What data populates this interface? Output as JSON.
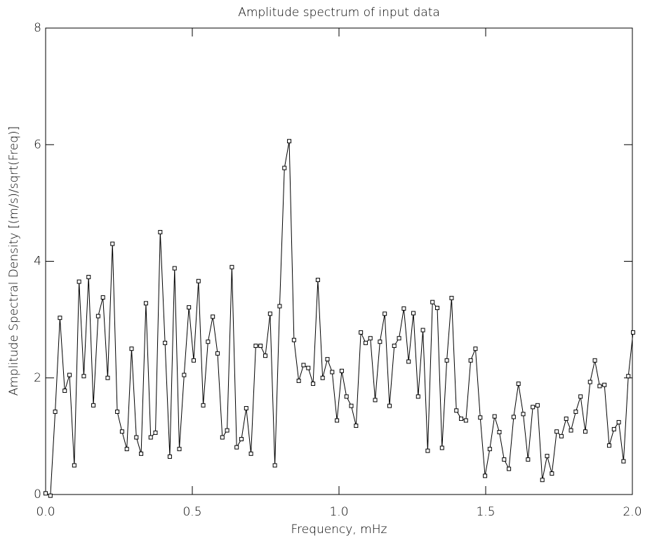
{
  "chart_data": {
    "type": "line",
    "title": "Amplitude spectrum of input data",
    "x_label": "Frequency, mHz",
    "y_label": "Amplitude Spectral Density [(m/s)/sqrt(Freq)]",
    "xlim": [
      0,
      2
    ],
    "ylim": [
      0,
      8
    ],
    "xticks": [
      {
        "value": 0,
        "label": "0.0"
      },
      0.5,
      {
        "value": 1,
        "label": "1.0"
      },
      1.5,
      {
        "value": 2,
        "label": "2.0"
      }
    ],
    "yticks": [
      0,
      2,
      4,
      6,
      8
    ],
    "grid": false,
    "x": [
      0,
      0.0163,
      0.0326,
      0.0488,
      0.0651,
      0.0814,
      0.0977,
      0.114,
      0.1302,
      0.1465,
      0.1628,
      0.1791,
      0.1954,
      0.2116,
      0.2279,
      0.2442,
      0.2605,
      0.2768,
      0.293,
      0.3093,
      0.3256,
      0.3419,
      0.3582,
      0.3744,
      0.3907,
      0.407,
      0.4233,
      0.4396,
      0.4558,
      0.4721,
      0.4884,
      0.5047,
      0.521,
      0.5372,
      0.5535,
      0.5698,
      0.5861,
      0.6024,
      0.6186,
      0.6349,
      0.6512,
      0.6675,
      0.6838,
      0.7,
      0.7163,
      0.7326,
      0.7489,
      0.7652,
      0.7814,
      0.7977,
      0.814,
      0.8303,
      0.8466,
      0.8628,
      0.8791,
      0.8954,
      0.9117,
      0.928,
      0.9442,
      0.9605,
      0.9768,
      0.9931,
      1.0094,
      1.0256,
      1.0419,
      1.0582,
      1.0745,
      1.0908,
      1.107,
      1.1233,
      1.1396,
      1.1559,
      1.1722,
      1.1884,
      1.2047,
      1.221,
      1.2373,
      1.2536,
      1.2698,
      1.2861,
      1.3024,
      1.3187,
      1.335,
      1.3512,
      1.3675,
      1.3838,
      1.4001,
      1.4164,
      1.4326,
      1.4489,
      1.4652,
      1.4815,
      1.4978,
      1.514,
      1.5303,
      1.5466,
      1.5629,
      1.5792,
      1.5954,
      1.6117,
      1.628,
      1.6443,
      1.6606,
      1.6768,
      1.6931,
      1.7094,
      1.7257,
      1.742,
      1.7582,
      1.7745,
      1.7908,
      1.8071,
      1.8234,
      1.8396,
      1.8559,
      1.8722,
      1.8885,
      1.9048,
      1.921,
      1.9373,
      1.9536,
      1.9699,
      1.9862,
      2.0024
    ],
    "series": [
      {
        "color": "#000000",
        "values": [
          0.02,
          -0.02,
          1.42,
          3.03,
          1.78,
          2.05,
          0.5,
          3.65,
          2.03,
          3.73,
          1.53,
          3.06,
          3.38,
          2.0,
          4.3,
          1.42,
          1.08,
          0.78,
          2.5,
          0.98,
          0.7,
          3.28,
          0.98,
          1.06,
          4.5,
          2.6,
          0.65,
          3.88,
          0.78,
          2.05,
          3.21,
          2.3,
          3.66,
          1.53,
          2.62,
          3.05,
          2.42,
          0.98,
          1.1,
          3.9,
          0.81,
          0.95,
          1.48,
          0.7,
          2.55,
          2.55,
          2.38,
          3.1,
          0.5,
          3.23,
          5.6,
          6.06,
          2.65,
          1.95,
          2.22,
          2.17,
          1.9,
          3.68,
          2.0,
          2.32,
          2.1,
          1.27,
          2.12,
          1.68,
          1.52,
          1.18,
          2.78,
          2.6,
          2.68,
          1.62,
          2.62,
          3.1,
          1.52,
          2.55,
          2.68,
          3.19,
          2.28,
          3.11,
          1.68,
          2.82,
          0.75,
          3.3,
          3.2,
          0.8,
          2.3,
          3.37,
          1.44,
          1.3,
          1.27,
          2.3,
          2.5,
          1.32,
          0.32,
          0.78,
          1.34,
          1.07,
          0.6,
          0.44,
          1.33,
          1.9,
          1.38,
          0.6,
          1.5,
          1.53,
          0.25,
          0.66,
          0.36,
          1.08,
          1.0,
          1.3,
          1.1,
          1.42,
          1.68,
          1.08,
          1.93,
          2.3,
          1.86,
          1.88,
          0.84,
          1.12,
          1.24,
          0.57,
          2.03,
          2.78
        ]
      }
    ]
  }
}
